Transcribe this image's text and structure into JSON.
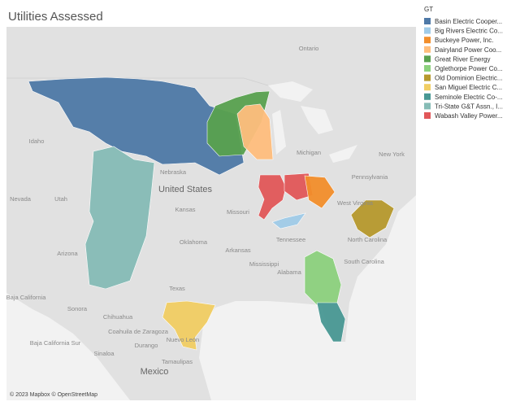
{
  "title": "Utilities Assessed",
  "legend": {
    "title": "GT",
    "items": [
      {
        "label": "Basin Electric Cooper...",
        "color": "#4e79a7"
      },
      {
        "label": "Big Rivers Electric Co...",
        "color": "#a0cbe8"
      },
      {
        "label": "Buckeye Power, Inc.",
        "color": "#f28e2b"
      },
      {
        "label": "Dairyland Power Coo...",
        "color": "#ffbe7d"
      },
      {
        "label": "Great River Energy",
        "color": "#59a14f"
      },
      {
        "label": "Oglethorpe Power Co...",
        "color": "#8cd17d"
      },
      {
        "label": "Old Dominion Electric...",
        "color": "#b6992d"
      },
      {
        "label": "San Miguel Electric C...",
        "color": "#f1ce63"
      },
      {
        "label": "Seminole Electric Co-...",
        "color": "#499894"
      },
      {
        "label": "Tri-State G&T Assn., I...",
        "color": "#86bcb6"
      },
      {
        "label": "Wabash Valley Power...",
        "color": "#e15759"
      }
    ]
  },
  "map": {
    "labels": [
      "Ontario",
      "Idaho",
      "Nebraska",
      "United States",
      "Nevada",
      "Utah",
      "Kansas",
      "Missouri",
      "Oklahoma",
      "Arkansas",
      "Arizona",
      "Tennessee",
      "Mississippi",
      "Alabama",
      "Texas",
      "Michigan",
      "Pennsylvania",
      "West Virginia",
      "New York",
      "North Carolina",
      "South Carolina",
      "Baja California",
      "Sonora",
      "Chihuahua",
      "Coahuila de Zaragoza",
      "Nuevo León",
      "Baja California Sur",
      "Sinaloa",
      "Durango",
      "Tamaulipas",
      "Mexico"
    ],
    "attribution": "© 2023 Mapbox © OpenStreetMap"
  }
}
